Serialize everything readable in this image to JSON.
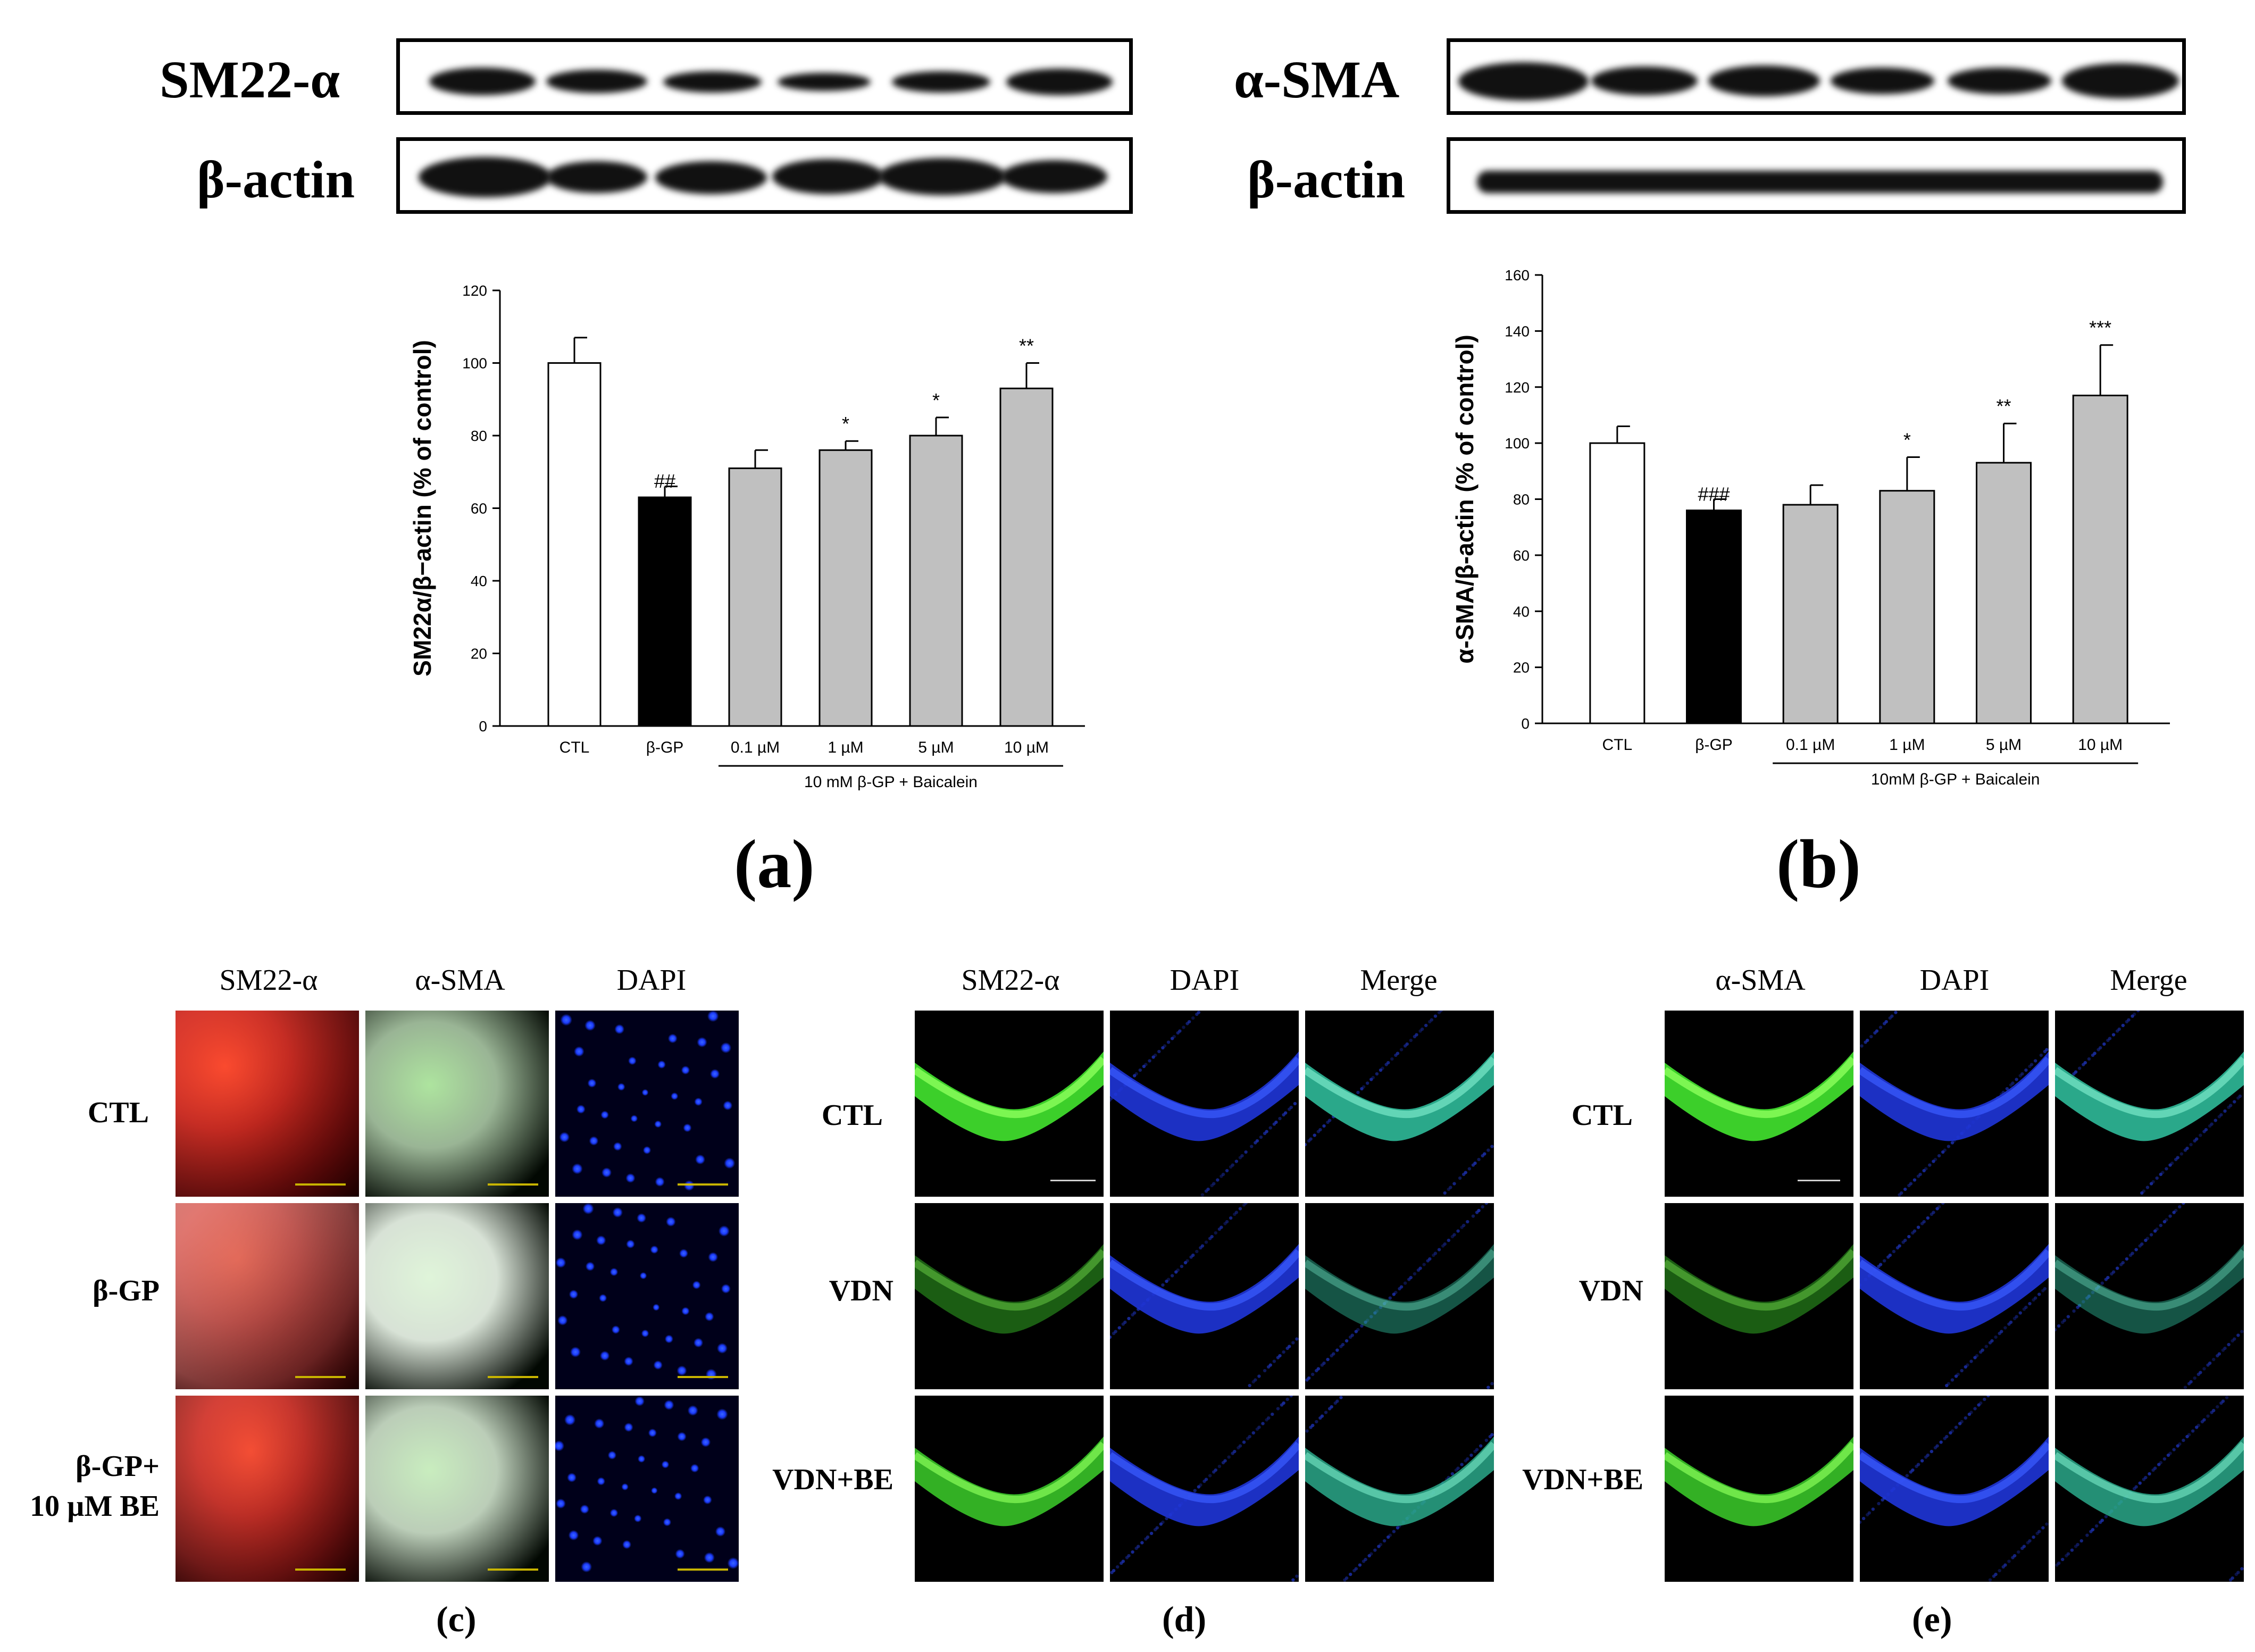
{
  "blots": {
    "a": {
      "target_label": "SM22-α",
      "loading_label": "β-actin"
    },
    "b": {
      "target_label": "α-SMA",
      "loading_label": "β-actin"
    }
  },
  "panel_letters": {
    "a": "(a)",
    "b": "(b)",
    "c": "(c)",
    "d": "(d)",
    "e": "(e)"
  },
  "chart_data": [
    {
      "type": "bar",
      "panel": "a",
      "title": "",
      "xlabel": "",
      "ylabel": "SM22α/β−actin (% of control)",
      "ylim": [
        0,
        120
      ],
      "yticks": [
        "0",
        "20",
        "40",
        "60",
        "80",
        "100",
        "120"
      ],
      "categories": [
        "CTL",
        "β-GP",
        "0.1 µM",
        "1 µM",
        "5 µM",
        "10 µM"
      ],
      "values": [
        100,
        63,
        71,
        76,
        80,
        93
      ],
      "errors": [
        7,
        3,
        5,
        2.5,
        5,
        7
      ],
      "bar_colors": [
        "#ffffff",
        "#000000",
        "#c0c0c0",
        "#c0c0c0",
        "#c0c0c0",
        "#c0c0c0"
      ],
      "annotations": [
        "",
        "##",
        "",
        "*",
        "*",
        "**"
      ],
      "group_label": "10 mM β-GP + Baicalein"
    },
    {
      "type": "bar",
      "panel": "b",
      "title": "",
      "xlabel": "",
      "ylabel": "α-SMA/β-actin (% of control)",
      "ylim": [
        0,
        160
      ],
      "yticks": [
        "0",
        "20",
        "40",
        "60",
        "80",
        "100",
        "120",
        "140",
        "160"
      ],
      "categories": [
        "CTL",
        "β-GP",
        "0.1 µM",
        "1 µM",
        "5 µM",
        "10 µM"
      ],
      "values": [
        100,
        76,
        78,
        83,
        93,
        117
      ],
      "errors": [
        6,
        4,
        7,
        12,
        14,
        18
      ],
      "bar_colors": [
        "#ffffff",
        "#000000",
        "#c0c0c0",
        "#c0c0c0",
        "#c0c0c0",
        "#c0c0c0"
      ],
      "annotations": [
        "",
        "###",
        "",
        "*",
        "**",
        "***"
      ],
      "group_label": "10mM β-GP + Baicalein"
    }
  ],
  "panel_c": {
    "columns": [
      "SM22-α",
      "α-SMA",
      "DAPI"
    ],
    "rows": [
      "CTL",
      "β-GP",
      "β-GP+",
      "10 µM BE"
    ],
    "channel_colors": {
      "red": "#ff2a1a",
      "green": "#49b82a",
      "blue": "#1a3cff"
    }
  },
  "panel_d": {
    "columns": [
      "SM22-α",
      "DAPI",
      "Merge"
    ],
    "rows": [
      "CTL",
      "VDN",
      "VDN+BE"
    ]
  },
  "panel_e": {
    "columns": [
      "α-SMA",
      "DAPI",
      "Merge"
    ],
    "rows": [
      "CTL",
      "VDN",
      "VDN+BE"
    ]
  },
  "stain_intensity": {
    "d_rows": [
      1.0,
      0.45,
      0.85
    ],
    "e_rows": [
      1.0,
      0.45,
      0.85
    ]
  }
}
